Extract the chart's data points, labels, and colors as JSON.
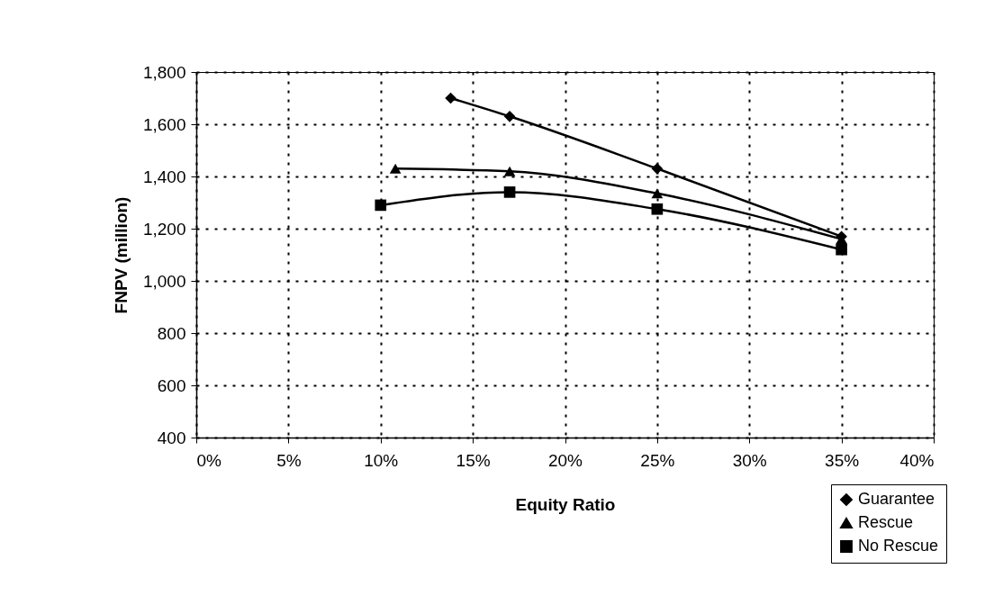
{
  "chart_data": {
    "type": "line",
    "xlabel": "Equity Ratio",
    "ylabel": "FNPV (million)",
    "xlim": [
      0,
      40
    ],
    "xticks": [
      {
        "value": 0,
        "label": "0%"
      },
      {
        "value": 5,
        "label": "5%"
      },
      {
        "value": 10,
        "label": "10%"
      },
      {
        "value": 15,
        "label": "15%"
      },
      {
        "value": 20,
        "label": "20%"
      },
      {
        "value": 25,
        "label": "25%"
      },
      {
        "value": 30,
        "label": "30%"
      },
      {
        "value": 35,
        "label": "35%"
      },
      {
        "value": 40,
        "label": "40%"
      }
    ],
    "ylim": [
      400,
      1800
    ],
    "yticks": [
      {
        "value": 400,
        "label": "400"
      },
      {
        "value": 600,
        "label": "600"
      },
      {
        "value": 800,
        "label": "800"
      },
      {
        "value": 1000,
        "label": "1,000"
      },
      {
        "value": 1200,
        "label": "1,200"
      },
      {
        "value": 1400,
        "label": "1,400"
      },
      {
        "value": 1600,
        "label": "1,600"
      },
      {
        "value": 1800,
        "label": "1,800"
      }
    ],
    "grid": true,
    "legend": "bottom right",
    "line_style": "solid",
    "series": [
      {
        "name": "Guarantee",
        "color": "#000000",
        "marker": "diamond",
        "x": [
          13.8,
          17,
          25,
          35
        ],
        "values": [
          1700,
          1630,
          1430,
          1170
        ]
      },
      {
        "name": "Rescue",
        "color": "#000000",
        "marker": "triangle",
        "x": [
          10.8,
          17,
          25,
          35
        ],
        "values": [
          1430,
          1420,
          1335,
          1160
        ]
      },
      {
        "name": "No Rescue",
        "color": "#000000",
        "marker": "square",
        "x": [
          10,
          17,
          25,
          35
        ],
        "values": [
          1290,
          1340,
          1275,
          1120
        ]
      }
    ]
  }
}
